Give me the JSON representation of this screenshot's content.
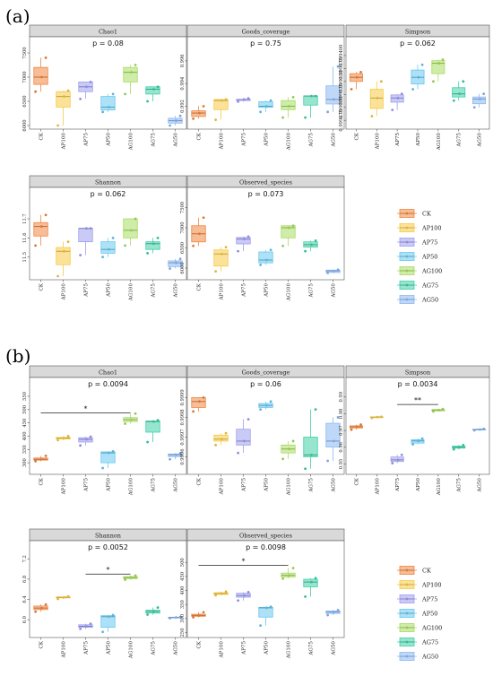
{
  "panel_labels": [
    "(a)",
    "(b)"
  ],
  "groups": [
    "CK",
    "AP100",
    "AP75",
    "AP50",
    "AG100",
    "AG75",
    "AG50"
  ],
  "colors": [
    "#f0863f",
    "#f7ca45",
    "#9f9ef0",
    "#68c8f0",
    "#a8dc60",
    "#3fcfa8",
    "#8cb8f2"
  ],
  "chart_data": [
    {
      "type": "box",
      "panel": "a",
      "metric": "Chao1",
      "pvalue": "p = 0.08",
      "ylim": [
        6000,
        7500
      ],
      "ticks": [
        6000,
        6500,
        7000,
        7500
      ],
      "boxes": [
        {
          "group": "CK",
          "q1": 6850,
          "median": 7000,
          "q3": 7200,
          "lo": 6700,
          "hi": 7400
        },
        {
          "group": "AP100",
          "q1": 6380,
          "median": 6600,
          "q3": 6700,
          "lo": 6000,
          "hi": 6720
        },
        {
          "group": "AP75",
          "q1": 6700,
          "median": 6800,
          "q3": 6900,
          "lo": 6550,
          "hi": 6900
        },
        {
          "group": "AP50",
          "q1": 6320,
          "median": 6380,
          "q3": 6600,
          "lo": 6280,
          "hi": 6650
        },
        {
          "group": "AG100",
          "q1": 6900,
          "median": 7100,
          "q3": 7200,
          "lo": 6650,
          "hi": 7250
        },
        {
          "group": "AG75",
          "q1": 6650,
          "median": 6750,
          "q3": 6800,
          "lo": 6500,
          "hi": 6800
        },
        {
          "group": "AG50",
          "q1": 6050,
          "median": 6100,
          "q3": 6150,
          "lo": 6000,
          "hi": 6200
        }
      ]
    },
    {
      "type": "box",
      "panel": "a",
      "metric": "Goods_coverage",
      "pvalue": "p = 0.75",
      "ylim": [
        0.9903,
        0.9967
      ],
      "ticks": [
        0.992,
        0.994,
        0.996
      ],
      "boxes": [
        {
          "group": "CK",
          "q1": 0.9911,
          "median": 0.9914,
          "q3": 0.9916,
          "lo": 0.9909,
          "hi": 0.992
        },
        {
          "group": "AP100",
          "q1": 0.9917,
          "median": 0.9925,
          "q3": 0.9926,
          "lo": 0.9908,
          "hi": 0.9926
        },
        {
          "group": "AP75",
          "q1": 0.9925,
          "median": 0.9926,
          "q3": 0.9926,
          "lo": 0.9924,
          "hi": 0.9927
        },
        {
          "group": "AP50",
          "q1": 0.9919,
          "median": 0.992,
          "q3": 0.9924,
          "lo": 0.9915,
          "hi": 0.9925
        },
        {
          "group": "AG100",
          "q1": 0.9917,
          "median": 0.992,
          "q3": 0.9925,
          "lo": 0.991,
          "hi": 0.9928
        },
        {
          "group": "AG75",
          "q1": 0.9921,
          "median": 0.9929,
          "q3": 0.9929,
          "lo": 0.991,
          "hi": 0.9929
        },
        {
          "group": "AG50",
          "q1": 0.9922,
          "median": 0.9926,
          "q3": 0.9938,
          "lo": 0.9915,
          "hi": 0.9955
        }
      ]
    },
    {
      "type": "box",
      "panel": "a",
      "metric": "Simpson",
      "pvalue": "p = 0.062",
      "ylim": [
        0.999265,
        0.999405
      ],
      "ticks": [
        0.999275,
        0.9993,
        0.999325,
        0.99935,
        0.999375,
        0.9994
      ],
      "tick_labels": [
        "0.999275",
        "0.999300",
        "0.999325",
        "0.999350",
        "0.999375",
        "0.999400"
      ],
      "boxes": [
        {
          "group": "CK",
          "q1": 0.99935,
          "median": 0.999358,
          "q3": 0.999365,
          "lo": 0.999335,
          "hi": 0.999368
        },
        {
          "group": "AP100",
          "q1": 0.999298,
          "median": 0.999318,
          "q3": 0.999335,
          "lo": 0.999283,
          "hi": 0.99935
        },
        {
          "group": "AP75",
          "q1": 0.99931,
          "median": 0.999318,
          "q3": 0.999324,
          "lo": 0.999295,
          "hi": 0.999326
        },
        {
          "group": "AP50",
          "q1": 0.999345,
          "median": 0.999358,
          "q3": 0.999372,
          "lo": 0.999335,
          "hi": 0.999382
        },
        {
          "group": "AG100",
          "q1": 0.999365,
          "median": 0.999385,
          "q3": 0.99939,
          "lo": 0.99935,
          "hi": 0.999392
        },
        {
          "group": "AG75",
          "q1": 0.99932,
          "median": 0.999326,
          "q3": 0.999338,
          "lo": 0.999313,
          "hi": 0.99935
        },
        {
          "group": "AG50",
          "q1": 0.999307,
          "median": 0.999316,
          "q3": 0.99932,
          "lo": 0.9993,
          "hi": 0.999326
        }
      ]
    },
    {
      "type": "box",
      "panel": "a",
      "metric": "Shannon",
      "pvalue": "p = 0.062",
      "ylim": [
        11.4,
        11.78
      ],
      "ticks": [
        11.5,
        11.6,
        11.7
      ],
      "boxes": [
        {
          "group": "CK",
          "q1": 11.61,
          "median": 11.66,
          "q3": 11.68,
          "lo": 11.56,
          "hi": 11.72
        },
        {
          "group": "AP100",
          "q1": 11.46,
          "median": 11.53,
          "q3": 11.55,
          "lo": 11.4,
          "hi": 11.58
        },
        {
          "group": "AP75",
          "q1": 11.58,
          "median": 11.65,
          "q3": 11.65,
          "lo": 11.51,
          "hi": 11.65
        },
        {
          "group": "AP50",
          "q1": 11.52,
          "median": 11.54,
          "q3": 11.58,
          "lo": 11.5,
          "hi": 11.6
        },
        {
          "group": "AG100",
          "q1": 11.6,
          "median": 11.64,
          "q3": 11.7,
          "lo": 11.56,
          "hi": 11.7
        },
        {
          "group": "AG75",
          "q1": 11.54,
          "median": 11.57,
          "q3": 11.58,
          "lo": 11.52,
          "hi": 11.6
        },
        {
          "group": "AG50",
          "q1": 11.45,
          "median": 11.47,
          "q3": 11.48,
          "lo": 11.44,
          "hi": 11.49
        }
      ]
    },
    {
      "type": "box",
      "panel": "a",
      "metric": "Observed_species",
      "pvalue": "p = 0.073",
      "ylim": [
        5800,
        7600
      ],
      "ticks": [
        6000,
        6500,
        7000,
        7500
      ],
      "boxes": [
        {
          "group": "CK",
          "q1": 6650,
          "median": 6850,
          "q3": 7050,
          "lo": 6550,
          "hi": 7250
        },
        {
          "group": "AP100",
          "q1": 6050,
          "median": 6350,
          "q3": 6450,
          "lo": 5920,
          "hi": 6520
        },
        {
          "group": "AP75",
          "q1": 6600,
          "median": 6720,
          "q3": 6760,
          "lo": 6420,
          "hi": 6780
        },
        {
          "group": "AP50",
          "q1": 6130,
          "median": 6200,
          "q3": 6400,
          "lo": 6080,
          "hi": 6450
        },
        {
          "group": "AG100",
          "q1": 6750,
          "median": 7000,
          "q3": 7050,
          "lo": 6550,
          "hi": 7050
        },
        {
          "group": "AG75",
          "q1": 6520,
          "median": 6580,
          "q3": 6650,
          "lo": 6420,
          "hi": 6680
        },
        {
          "group": "AG50",
          "q1": 5890,
          "median": 5930,
          "q3": 5950,
          "lo": 5880,
          "hi": 5960
        }
      ]
    },
    {
      "type": "box",
      "panel": "b",
      "metric": "Chao1",
      "pvalue": "p = 0.0094",
      "ylim": [
        270,
        560
      ],
      "ticks": [
        300,
        350,
        400,
        450,
        500,
        550
      ],
      "significance": {
        "from": "CK",
        "to": "AG100",
        "value": 487,
        "label": "*"
      },
      "boxes": [
        {
          "group": "CK",
          "q1": 310,
          "median": 313,
          "q3": 318,
          "lo": 306,
          "hi": 326
        },
        {
          "group": "AP100",
          "q1": 389,
          "median": 393,
          "q3": 395,
          "lo": 385,
          "hi": 400
        },
        {
          "group": "AP75",
          "q1": 378,
          "median": 388,
          "q3": 394,
          "lo": 365,
          "hi": 398
        },
        {
          "group": "AP50",
          "q1": 300,
          "median": 337,
          "q3": 341,
          "lo": 280,
          "hi": 343
        },
        {
          "group": "AG100",
          "q1": 455,
          "median": 462,
          "q3": 470,
          "lo": 447,
          "hi": 485
        },
        {
          "group": "AG75",
          "q1": 415,
          "median": 455,
          "q3": 457,
          "lo": 378,
          "hi": 460
        },
        {
          "group": "AG50",
          "q1": 323,
          "median": 330,
          "q3": 333,
          "lo": 313,
          "hi": 336
        }
      ]
    },
    {
      "type": "box",
      "panel": "b",
      "metric": "Goods_coverage",
      "pvalue": "p = 0.06",
      "ylim": [
        0.99953,
        0.99992
      ],
      "ticks": [
        0.9996,
        0.9997,
        0.9998,
        0.9999
      ],
      "tick_labels": [
        "0.9996",
        "0.9997",
        "0.9998",
        "0.9999"
      ],
      "boxes": [
        {
          "group": "CK",
          "q1": 0.99985,
          "median": 0.99988,
          "q3": 0.9999,
          "lo": 0.99983,
          "hi": 0.9999
        },
        {
          "group": "AP100",
          "q1": 0.99968,
          "median": 0.99969,
          "q3": 0.99971,
          "lo": 0.99966,
          "hi": 0.99972
        },
        {
          "group": "AP75",
          "q1": 0.99966,
          "median": 0.99968,
          "q3": 0.99974,
          "lo": 0.99962,
          "hi": 0.99979
        },
        {
          "group": "AP50",
          "q1": 0.99985,
          "median": 0.99986,
          "q3": 0.99987,
          "lo": 0.99984,
          "hi": 0.99988
        },
        {
          "group": "AG100",
          "q1": 0.99962,
          "median": 0.99964,
          "q3": 0.99966,
          "lo": 0.99959,
          "hi": 0.99968
        },
        {
          "group": "AG75",
          "q1": 0.9996,
          "median": 0.99961,
          "q3": 0.9997,
          "lo": 0.99954,
          "hi": 0.99984
        },
        {
          "group": "AG50",
          "q1": 0.99965,
          "median": 0.99968,
          "q3": 0.99977,
          "lo": 0.99958,
          "hi": 0.9998
        }
      ]
    },
    {
      "type": "box",
      "panel": "b",
      "metric": "Simpson",
      "pvalue": "p = 0.0034",
      "ylim": [
        0.946,
        0.992
      ],
      "ticks": [
        0.95,
        0.96,
        0.97,
        0.98,
        0.99
      ],
      "tick_labels": [
        "0.95",
        "0.96",
        "0.97",
        "0.98",
        "0.99"
      ],
      "significance": {
        "from": "AP75",
        "to": "AG100",
        "value": 0.9855,
        "label": "**"
      },
      "boxes": [
        {
          "group": "CK",
          "q1": 0.9715,
          "median": 0.9722,
          "q3": 0.9728,
          "lo": 0.9705,
          "hi": 0.9735
        },
        {
          "group": "AP100",
          "q1": 0.9778,
          "median": 0.978,
          "q3": 0.9781,
          "lo": 0.9775,
          "hi": 0.9782
        },
        {
          "group": "AP75",
          "q1": 0.9515,
          "median": 0.9525,
          "q3": 0.9542,
          "lo": 0.9505,
          "hi": 0.9555
        },
        {
          "group": "AP50",
          "q1": 0.9625,
          "median": 0.9638,
          "q3": 0.9645,
          "lo": 0.9618,
          "hi": 0.9652
        },
        {
          "group": "AG100",
          "q1": 0.9817,
          "median": 0.9822,
          "q3": 0.9825,
          "lo": 0.9814,
          "hi": 0.9828
        },
        {
          "group": "AG75",
          "q1": 0.9595,
          "median": 0.96,
          "q3": 0.9607,
          "lo": 0.9588,
          "hi": 0.9613
        },
        {
          "group": "AG50",
          "q1": 0.9703,
          "median": 0.9706,
          "q3": 0.9708,
          "lo": 0.9701,
          "hi": 0.971
        }
      ]
    },
    {
      "type": "box",
      "panel": "b",
      "metric": "Shannon",
      "pvalue": "p = 0.0052",
      "ylim": [
        5.72,
        7.24
      ],
      "ticks": [
        6.0,
        6.4,
        6.8,
        7.2
      ],
      "tick_labels": [
        "6.0",
        "6.4",
        "6.8",
        "7.2"
      ],
      "significance": {
        "from": "AP75",
        "to": "AG100",
        "value": 6.9,
        "label": "*"
      },
      "boxes": [
        {
          "group": "CK",
          "q1": 6.2,
          "median": 6.23,
          "q3": 6.27,
          "lo": 6.16,
          "hi": 6.3
        },
        {
          "group": "AP100",
          "q1": 6.43,
          "median": 6.44,
          "q3": 6.45,
          "lo": 6.41,
          "hi": 6.46
        },
        {
          "group": "AP75",
          "q1": 5.85,
          "median": 5.87,
          "q3": 5.9,
          "lo": 5.82,
          "hi": 5.92
        },
        {
          "group": "AP50",
          "q1": 5.85,
          "median": 6.06,
          "q3": 6.08,
          "lo": 5.76,
          "hi": 6.09
        },
        {
          "group": "AG100",
          "q1": 6.81,
          "median": 6.83,
          "q3": 6.85,
          "lo": 6.79,
          "hi": 6.87
        },
        {
          "group": "AG75",
          "q1": 6.13,
          "median": 6.16,
          "q3": 6.19,
          "lo": 6.1,
          "hi": 6.24
        },
        {
          "group": "AG50",
          "q1": 6.035,
          "median": 6.045,
          "q3": 6.05,
          "lo": 6.03,
          "hi": 6.055
        }
      ]
    },
    {
      "type": "box",
      "panel": "b",
      "metric": "Observed_species",
      "pvalue": "p = 0.0098",
      "ylim": [
        245,
        520
      ],
      "ticks": [
        250,
        300,
        350,
        400,
        450,
        500
      ],
      "significance": {
        "from": "CK",
        "to": "AG100",
        "value": 490,
        "label": "*"
      },
      "boxes": [
        {
          "group": "CK",
          "q1": 308,
          "median": 311,
          "q3": 315,
          "lo": 304,
          "hi": 322
        },
        {
          "group": "AP100",
          "q1": 386,
          "median": 389,
          "q3": 392,
          "lo": 383,
          "hi": 396
        },
        {
          "group": "AP75",
          "q1": 376,
          "median": 382,
          "q3": 390,
          "lo": 364,
          "hi": 394
        },
        {
          "group": "AP50",
          "q1": 305,
          "median": 338,
          "q3": 340,
          "lo": 275,
          "hi": 342
        },
        {
          "group": "AG100",
          "q1": 448,
          "median": 454,
          "q3": 462,
          "lo": 442,
          "hi": 480
        },
        {
          "group": "AG75",
          "q1": 413,
          "median": 430,
          "q3": 440,
          "lo": 378,
          "hi": 444
        },
        {
          "group": "AG50",
          "q1": 318,
          "median": 323,
          "q3": 327,
          "lo": 312,
          "hi": 330
        }
      ]
    }
  ]
}
